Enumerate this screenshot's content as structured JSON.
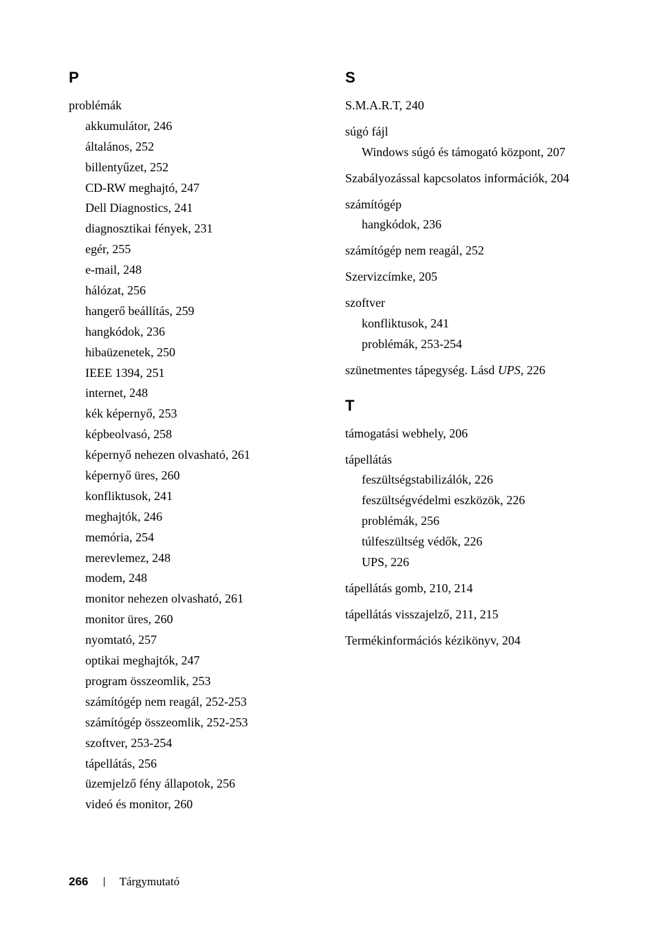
{
  "leftColumn": {
    "sections": [
      {
        "letter": "P",
        "entries": [
          {
            "type": "main",
            "text": "problémák"
          },
          {
            "type": "sub",
            "text": "akkumulátor, ",
            "page": "246"
          },
          {
            "type": "sub",
            "text": "általános, ",
            "page": "252"
          },
          {
            "type": "sub",
            "text": "billentyűzet, ",
            "page": "252"
          },
          {
            "type": "sub",
            "text": "CD-RW meghajtó, ",
            "page": "247"
          },
          {
            "type": "sub",
            "text": "Dell Diagnostics, ",
            "page": "241"
          },
          {
            "type": "sub",
            "text": "diagnosztikai fények, ",
            "page": "231"
          },
          {
            "type": "sub",
            "text": "egér, ",
            "page": "255"
          },
          {
            "type": "sub",
            "text": "e-mail, ",
            "page": "248"
          },
          {
            "type": "sub",
            "text": "hálózat, ",
            "page": "256"
          },
          {
            "type": "sub",
            "text": "hangerő beállítás, ",
            "page": "259"
          },
          {
            "type": "sub",
            "text": "hangkódok, ",
            "page": "236"
          },
          {
            "type": "sub",
            "text": "hibaüzenetek, ",
            "page": "250"
          },
          {
            "type": "sub",
            "text": "IEEE 1394, ",
            "page": "251"
          },
          {
            "type": "sub",
            "text": "internet, ",
            "page": "248"
          },
          {
            "type": "sub",
            "text": "kék képernyő, ",
            "page": "253"
          },
          {
            "type": "sub",
            "text": "képbeolvasó, ",
            "page": "258"
          },
          {
            "type": "sub",
            "text": "képernyő nehezen olvasható, ",
            "page": "261"
          },
          {
            "type": "sub",
            "text": "képernyő üres, ",
            "page": "260"
          },
          {
            "type": "sub",
            "text": "konfliktusok, ",
            "page": "241"
          },
          {
            "type": "sub",
            "text": "meghajtók, ",
            "page": "246"
          },
          {
            "type": "sub",
            "text": "memória, ",
            "page": "254"
          },
          {
            "type": "sub",
            "text": "merevlemez, ",
            "page": "248"
          },
          {
            "type": "sub",
            "text": "modem, ",
            "page": "248"
          },
          {
            "type": "sub",
            "text": "monitor nehezen olvasható, ",
            "page": "261"
          },
          {
            "type": "sub",
            "text": "monitor üres, ",
            "page": "260"
          },
          {
            "type": "sub",
            "text": "nyomtató, ",
            "page": "257"
          },
          {
            "type": "sub",
            "text": "optikai meghajtók, ",
            "page": "247"
          },
          {
            "type": "sub",
            "text": "program összeomlik, ",
            "page": "253"
          },
          {
            "type": "sub",
            "text": "számítógép nem reagál, ",
            "page": "252-253"
          },
          {
            "type": "sub",
            "text": "számítógép összeomlik, ",
            "page": "252-253"
          },
          {
            "type": "sub",
            "text": "szoftver, ",
            "page": "253-254"
          },
          {
            "type": "sub",
            "text": "tápellátás, ",
            "page": "256"
          },
          {
            "type": "sub",
            "text": "üzemjelző fény állapotok, ",
            "page": "256"
          },
          {
            "type": "sub",
            "text": "videó és monitor, ",
            "page": "260"
          }
        ]
      }
    ]
  },
  "rightColumn": {
    "sections": [
      {
        "letter": "S",
        "entries": [
          {
            "type": "main",
            "text": "S.M.A.R.T, ",
            "page": "240",
            "mb": 10
          },
          {
            "type": "main",
            "text": "súgó fájl"
          },
          {
            "type": "sub",
            "text": "Windows súgó és támogató központ, ",
            "page": "207",
            "mb": 10
          },
          {
            "type": "main",
            "text": "Szabályozással kapcsolatos információk, ",
            "page": "204",
            "mb": 10
          },
          {
            "type": "main",
            "text": "számítógép"
          },
          {
            "type": "sub",
            "text": "hangkódok, ",
            "page": "236",
            "mb": 10
          },
          {
            "type": "main",
            "text": "számítógép nem reagál, ",
            "page": "252",
            "mb": 10
          },
          {
            "type": "main",
            "text": "Szervizcímke, ",
            "page": "205",
            "mb": 10
          },
          {
            "type": "main",
            "text": "szoftver"
          },
          {
            "type": "sub",
            "text": "konfliktusok, ",
            "page": "241"
          },
          {
            "type": "sub",
            "text": "problémák, ",
            "page": "253-254",
            "mb": 10
          },
          {
            "type": "main",
            "text": "szünetmentes tápegység. Lásd ",
            "italicSuffix": "UPS",
            "afterItalic": ", ",
            "page": "226",
            "hang": true
          }
        ]
      },
      {
        "letter": "T",
        "entries": [
          {
            "type": "main",
            "text": "támogatási webhely, ",
            "page": "206",
            "mb": 10
          },
          {
            "type": "main",
            "text": "tápellátás"
          },
          {
            "type": "sub",
            "text": "feszültségstabilizálók, ",
            "page": "226"
          },
          {
            "type": "sub",
            "text": "feszültségvédelmi eszközök, ",
            "page": "226"
          },
          {
            "type": "sub",
            "text": "problémák, ",
            "page": "256"
          },
          {
            "type": "sub",
            "text": "túlfeszültség védők, ",
            "page": "226"
          },
          {
            "type": "sub",
            "text": "UPS, ",
            "page": "226",
            "mb": 10
          },
          {
            "type": "main",
            "text": "tápellátás gomb, ",
            "page": "210, 214",
            "mb": 10
          },
          {
            "type": "main",
            "text": "tápellátás visszajelző, ",
            "page": "211, 215",
            "mb": 10
          },
          {
            "type": "main",
            "text": "Termékinformációs kézikönyv, ",
            "page": "204",
            "hang": true
          }
        ]
      }
    ]
  },
  "footer": {
    "pageNumber": "266",
    "label": "Tárgymutató"
  }
}
